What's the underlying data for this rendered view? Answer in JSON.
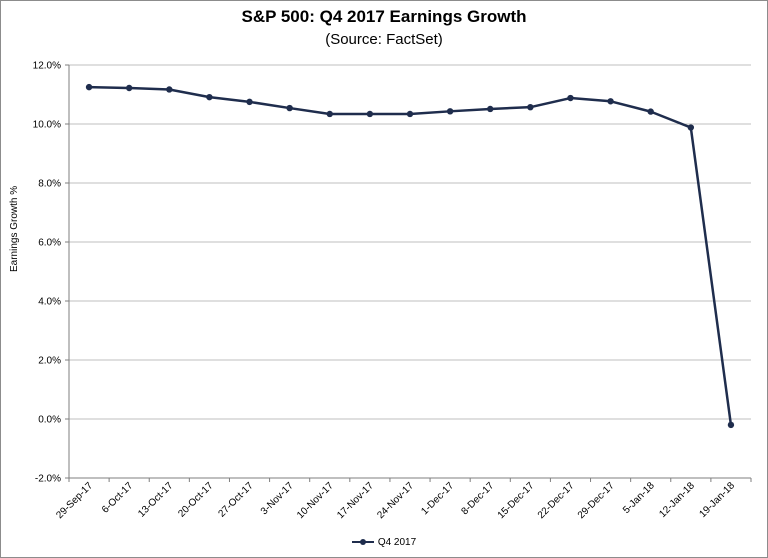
{
  "chart_data": {
    "type": "line",
    "title": "S&P 500: Q4 2017 Earnings Growth",
    "subtitle": "(Source: FactSet)",
    "xlabel": "",
    "ylabel": "Earnings Growth %",
    "ylim": [
      -2,
      12
    ],
    "yticks": [
      "-2.0%",
      "0.0%",
      "2.0%",
      "4.0%",
      "6.0%",
      "8.0%",
      "10.0%",
      "12.0%"
    ],
    "grid": true,
    "legend_position": "bottom",
    "categories": [
      "29-Sep-17",
      "6-Oct-17",
      "13-Oct-17",
      "20-Oct-17",
      "27-Oct-17",
      "3-Nov-17",
      "10-Nov-17",
      "17-Nov-17",
      "24-Nov-17",
      "1-Dec-17",
      "8-Dec-17",
      "15-Dec-17",
      "22-Dec-17",
      "29-Dec-17",
      "5-Jan-18",
      "12-Jan-18",
      "19-Jan-18"
    ],
    "series": [
      {
        "name": "Q4 2017",
        "color": "#1f2d4d",
        "values": [
          11.25,
          11.22,
          11.17,
          10.91,
          10.75,
          10.54,
          10.34,
          10.34,
          10.34,
          10.43,
          10.51,
          10.57,
          10.88,
          10.77,
          10.42,
          9.88,
          -0.2
        ]
      }
    ]
  }
}
